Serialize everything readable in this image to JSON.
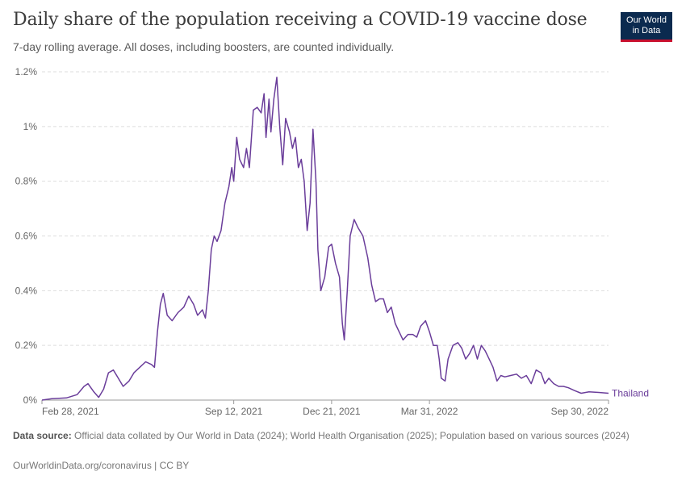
{
  "header": {
    "title": "Daily share of the population receiving a COVID-19 vaccine dose",
    "subtitle": "7-day rolling average. All doses, including boosters, are counted individually."
  },
  "logo": {
    "line1": "Our World",
    "line2": "in Data"
  },
  "footer": {
    "source_label": "Data source:",
    "source_text": "Official data collated by Our World in Data (2024); World Health Organisation (2025); Population based on various sources (2024)",
    "credit": "OurWorldinData.org/coronavirus | CC BY"
  },
  "chart_data": {
    "type": "line",
    "title": "Daily share of the population receiving a COVID-19 vaccine dose",
    "subtitle": "7-day rolling average. All doses, including boosters, are counted individually.",
    "y_unit": "%",
    "ylim": [
      0,
      1.2
    ],
    "y_ticks": [
      {
        "value": 0,
        "label": "0%"
      },
      {
        "value": 0.2,
        "label": "0.2%"
      },
      {
        "value": 0.4,
        "label": "0.4%"
      },
      {
        "value": 0.6,
        "label": "0.6%"
      },
      {
        "value": 0.8,
        "label": "0.8%"
      },
      {
        "value": 1.0,
        "label": "1%"
      },
      {
        "value": 1.2,
        "label": "1.2%"
      }
    ],
    "xlim": [
      "2021-02-28",
      "2022-09-30"
    ],
    "x_ticks": [
      {
        "date": "2021-02-28",
        "label": "Feb 28, 2021"
      },
      {
        "date": "2021-09-12",
        "label": "Sep 12, 2021"
      },
      {
        "date": "2021-12-21",
        "label": "Dec 21, 2021"
      },
      {
        "date": "2022-03-31",
        "label": "Mar 31, 2022"
      },
      {
        "date": "2022-09-30",
        "label": "Sep 30, 2022"
      }
    ],
    "grid": true,
    "colors": {
      "series": "#6a3d9a",
      "grid": "#dddddd",
      "axis": "#999999"
    },
    "series": [
      {
        "name": "Thailand",
        "points": [
          [
            "2021-02-28",
            0.0
          ],
          [
            "2021-03-10",
            0.005
          ],
          [
            "2021-03-25",
            0.008
          ],
          [
            "2021-04-05",
            0.02
          ],
          [
            "2021-04-12",
            0.05
          ],
          [
            "2021-04-16",
            0.06
          ],
          [
            "2021-04-22",
            0.03
          ],
          [
            "2021-04-27",
            0.01
          ],
          [
            "2021-05-02",
            0.04
          ],
          [
            "2021-05-07",
            0.1
          ],
          [
            "2021-05-12",
            0.11
          ],
          [
            "2021-05-17",
            0.08
          ],
          [
            "2021-05-22",
            0.05
          ],
          [
            "2021-05-28",
            0.07
          ],
          [
            "2021-06-02",
            0.1
          ],
          [
            "2021-06-08",
            0.12
          ],
          [
            "2021-06-14",
            0.14
          ],
          [
            "2021-06-20",
            0.13
          ],
          [
            "2021-06-23",
            0.12
          ],
          [
            "2021-06-26",
            0.25
          ],
          [
            "2021-06-29",
            0.35
          ],
          [
            "2021-07-02",
            0.39
          ],
          [
            "2021-07-06",
            0.31
          ],
          [
            "2021-07-11",
            0.29
          ],
          [
            "2021-07-17",
            0.32
          ],
          [
            "2021-07-23",
            0.34
          ],
          [
            "2021-07-28",
            0.38
          ],
          [
            "2021-08-02",
            0.35
          ],
          [
            "2021-08-06",
            0.31
          ],
          [
            "2021-08-11",
            0.33
          ],
          [
            "2021-08-14",
            0.3
          ],
          [
            "2021-08-17",
            0.4
          ],
          [
            "2021-08-20",
            0.55
          ],
          [
            "2021-08-23",
            0.6
          ],
          [
            "2021-08-26",
            0.58
          ],
          [
            "2021-08-30",
            0.62
          ],
          [
            "2021-09-03",
            0.72
          ],
          [
            "2021-09-07",
            0.78
          ],
          [
            "2021-09-10",
            0.85
          ],
          [
            "2021-09-12",
            0.8
          ],
          [
            "2021-09-15",
            0.96
          ],
          [
            "2021-09-18",
            0.88
          ],
          [
            "2021-09-22",
            0.85
          ],
          [
            "2021-09-25",
            0.92
          ],
          [
            "2021-09-28",
            0.85
          ],
          [
            "2021-10-02",
            1.06
          ],
          [
            "2021-10-06",
            1.07
          ],
          [
            "2021-10-10",
            1.05
          ],
          [
            "2021-10-13",
            1.12
          ],
          [
            "2021-10-15",
            0.96
          ],
          [
            "2021-10-18",
            1.1
          ],
          [
            "2021-10-20",
            0.98
          ],
          [
            "2021-10-23",
            1.1
          ],
          [
            "2021-10-26",
            1.18
          ],
          [
            "2021-10-29",
            1.0
          ],
          [
            "2021-11-01",
            0.86
          ],
          [
            "2021-11-04",
            1.03
          ],
          [
            "2021-11-08",
            0.98
          ],
          [
            "2021-11-11",
            0.92
          ],
          [
            "2021-11-14",
            0.96
          ],
          [
            "2021-11-17",
            0.85
          ],
          [
            "2021-11-20",
            0.88
          ],
          [
            "2021-11-23",
            0.8
          ],
          [
            "2021-11-26",
            0.62
          ],
          [
            "2021-11-29",
            0.72
          ],
          [
            "2021-12-02",
            0.99
          ],
          [
            "2021-12-05",
            0.8
          ],
          [
            "2021-12-07",
            0.55
          ],
          [
            "2021-12-10",
            0.4
          ],
          [
            "2021-12-14",
            0.45
          ],
          [
            "2021-12-18",
            0.56
          ],
          [
            "2021-12-21",
            0.57
          ],
          [
            "2021-12-25",
            0.5
          ],
          [
            "2021-12-29",
            0.45
          ],
          [
            "2022-01-01",
            0.28
          ],
          [
            "2022-01-03",
            0.22
          ],
          [
            "2022-01-06",
            0.4
          ],
          [
            "2022-01-09",
            0.6
          ],
          [
            "2022-01-13",
            0.66
          ],
          [
            "2022-01-17",
            0.63
          ],
          [
            "2022-01-22",
            0.6
          ],
          [
            "2022-01-27",
            0.52
          ],
          [
            "2022-01-31",
            0.42
          ],
          [
            "2022-02-04",
            0.36
          ],
          [
            "2022-02-08",
            0.37
          ],
          [
            "2022-02-12",
            0.37
          ],
          [
            "2022-02-16",
            0.32
          ],
          [
            "2022-02-20",
            0.34
          ],
          [
            "2022-02-24",
            0.28
          ],
          [
            "2022-02-28",
            0.25
          ],
          [
            "2022-03-04",
            0.22
          ],
          [
            "2022-03-09",
            0.24
          ],
          [
            "2022-03-14",
            0.24
          ],
          [
            "2022-03-18",
            0.23
          ],
          [
            "2022-03-22",
            0.27
          ],
          [
            "2022-03-27",
            0.29
          ],
          [
            "2022-03-31",
            0.25
          ],
          [
            "2022-04-04",
            0.2
          ],
          [
            "2022-04-08",
            0.2
          ],
          [
            "2022-04-10",
            0.15
          ],
          [
            "2022-04-12",
            0.08
          ],
          [
            "2022-04-16",
            0.07
          ],
          [
            "2022-04-19",
            0.15
          ],
          [
            "2022-04-24",
            0.2
          ],
          [
            "2022-04-29",
            0.21
          ],
          [
            "2022-05-03",
            0.19
          ],
          [
            "2022-05-07",
            0.15
          ],
          [
            "2022-05-11",
            0.17
          ],
          [
            "2022-05-15",
            0.2
          ],
          [
            "2022-05-19",
            0.15
          ],
          [
            "2022-05-23",
            0.2
          ],
          [
            "2022-05-27",
            0.18
          ],
          [
            "2022-05-31",
            0.15
          ],
          [
            "2022-06-04",
            0.12
          ],
          [
            "2022-06-08",
            0.07
          ],
          [
            "2022-06-12",
            0.09
          ],
          [
            "2022-06-16",
            0.085
          ],
          [
            "2022-06-22",
            0.09
          ],
          [
            "2022-06-28",
            0.095
          ],
          [
            "2022-07-03",
            0.08
          ],
          [
            "2022-07-08",
            0.09
          ],
          [
            "2022-07-13",
            0.06
          ],
          [
            "2022-07-18",
            0.11
          ],
          [
            "2022-07-23",
            0.1
          ],
          [
            "2022-07-27",
            0.06
          ],
          [
            "2022-07-31",
            0.08
          ],
          [
            "2022-08-05",
            0.06
          ],
          [
            "2022-08-10",
            0.05
          ],
          [
            "2022-08-15",
            0.05
          ],
          [
            "2022-08-20",
            0.045
          ],
          [
            "2022-08-26",
            0.035
          ],
          [
            "2022-09-02",
            0.025
          ],
          [
            "2022-09-10",
            0.03
          ],
          [
            "2022-09-20",
            0.028
          ],
          [
            "2022-09-30",
            0.025
          ]
        ]
      }
    ]
  }
}
